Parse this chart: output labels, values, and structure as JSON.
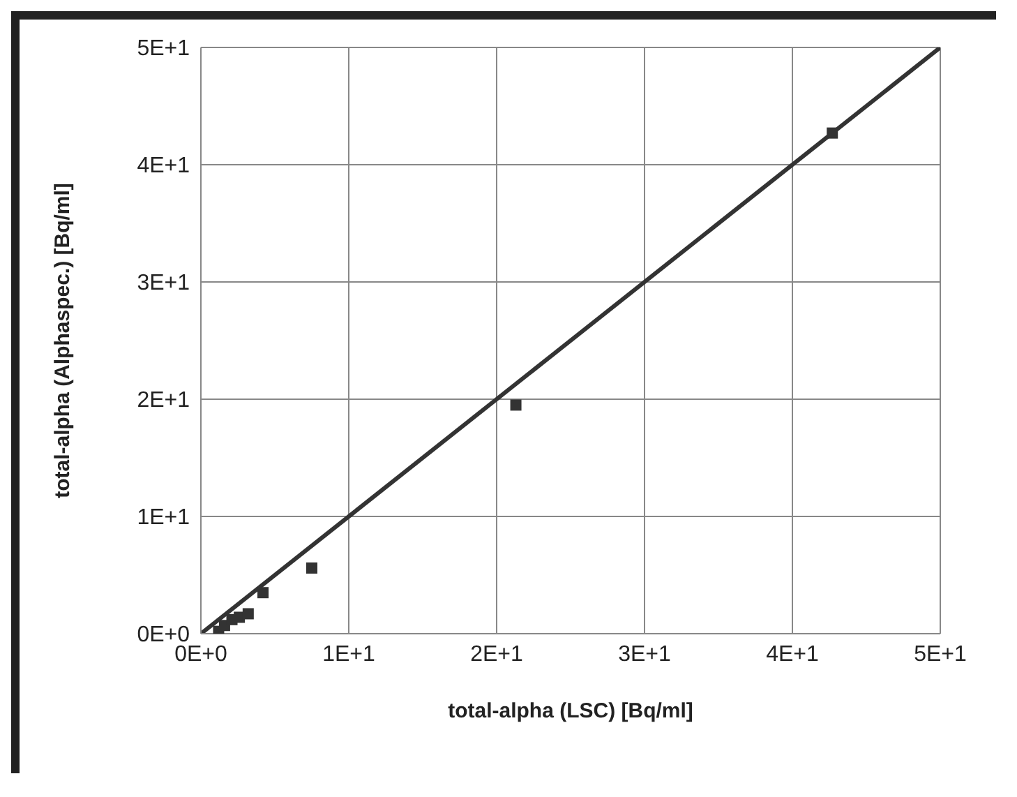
{
  "chart_data": {
    "type": "scatter",
    "xlabel": "total-alpha (LSC) [Bq/ml]",
    "ylabel": "total-alpha (Alphaspec.) [Bq/ml]",
    "xlim": [
      0,
      50
    ],
    "ylim": [
      0,
      50
    ],
    "xticks": [
      {
        "value": 0,
        "label": "0E+0"
      },
      {
        "value": 10,
        "label": "1E+1"
      },
      {
        "value": 20,
        "label": "2E+1"
      },
      {
        "value": 30,
        "label": "3E+1"
      },
      {
        "value": 40,
        "label": "4E+1"
      },
      {
        "value": 50,
        "label": "5E+1"
      }
    ],
    "yticks": [
      {
        "value": 0,
        "label": "0E+0"
      },
      {
        "value": 10,
        "label": "1E+1"
      },
      {
        "value": 20,
        "label": "2E+1"
      },
      {
        "value": 30,
        "label": "3E+1"
      },
      {
        "value": 40,
        "label": "4E+1"
      },
      {
        "value": 50,
        "label": "5E+1"
      }
    ],
    "grid": true,
    "marker": "square",
    "series": [
      {
        "type": "line",
        "color": "#333333",
        "marker": "none",
        "x": [
          0,
          50
        ],
        "values": [
          0,
          50
        ]
      },
      {
        "color": "#333333",
        "x": [
          1.2,
          1.6,
          2.1,
          2.6,
          3.2,
          4.2,
          7.5,
          21.3,
          42.7
        ],
        "values": [
          0.2,
          0.7,
          1.2,
          1.4,
          1.7,
          3.5,
          5.6,
          19.5,
          42.7
        ]
      }
    ]
  }
}
